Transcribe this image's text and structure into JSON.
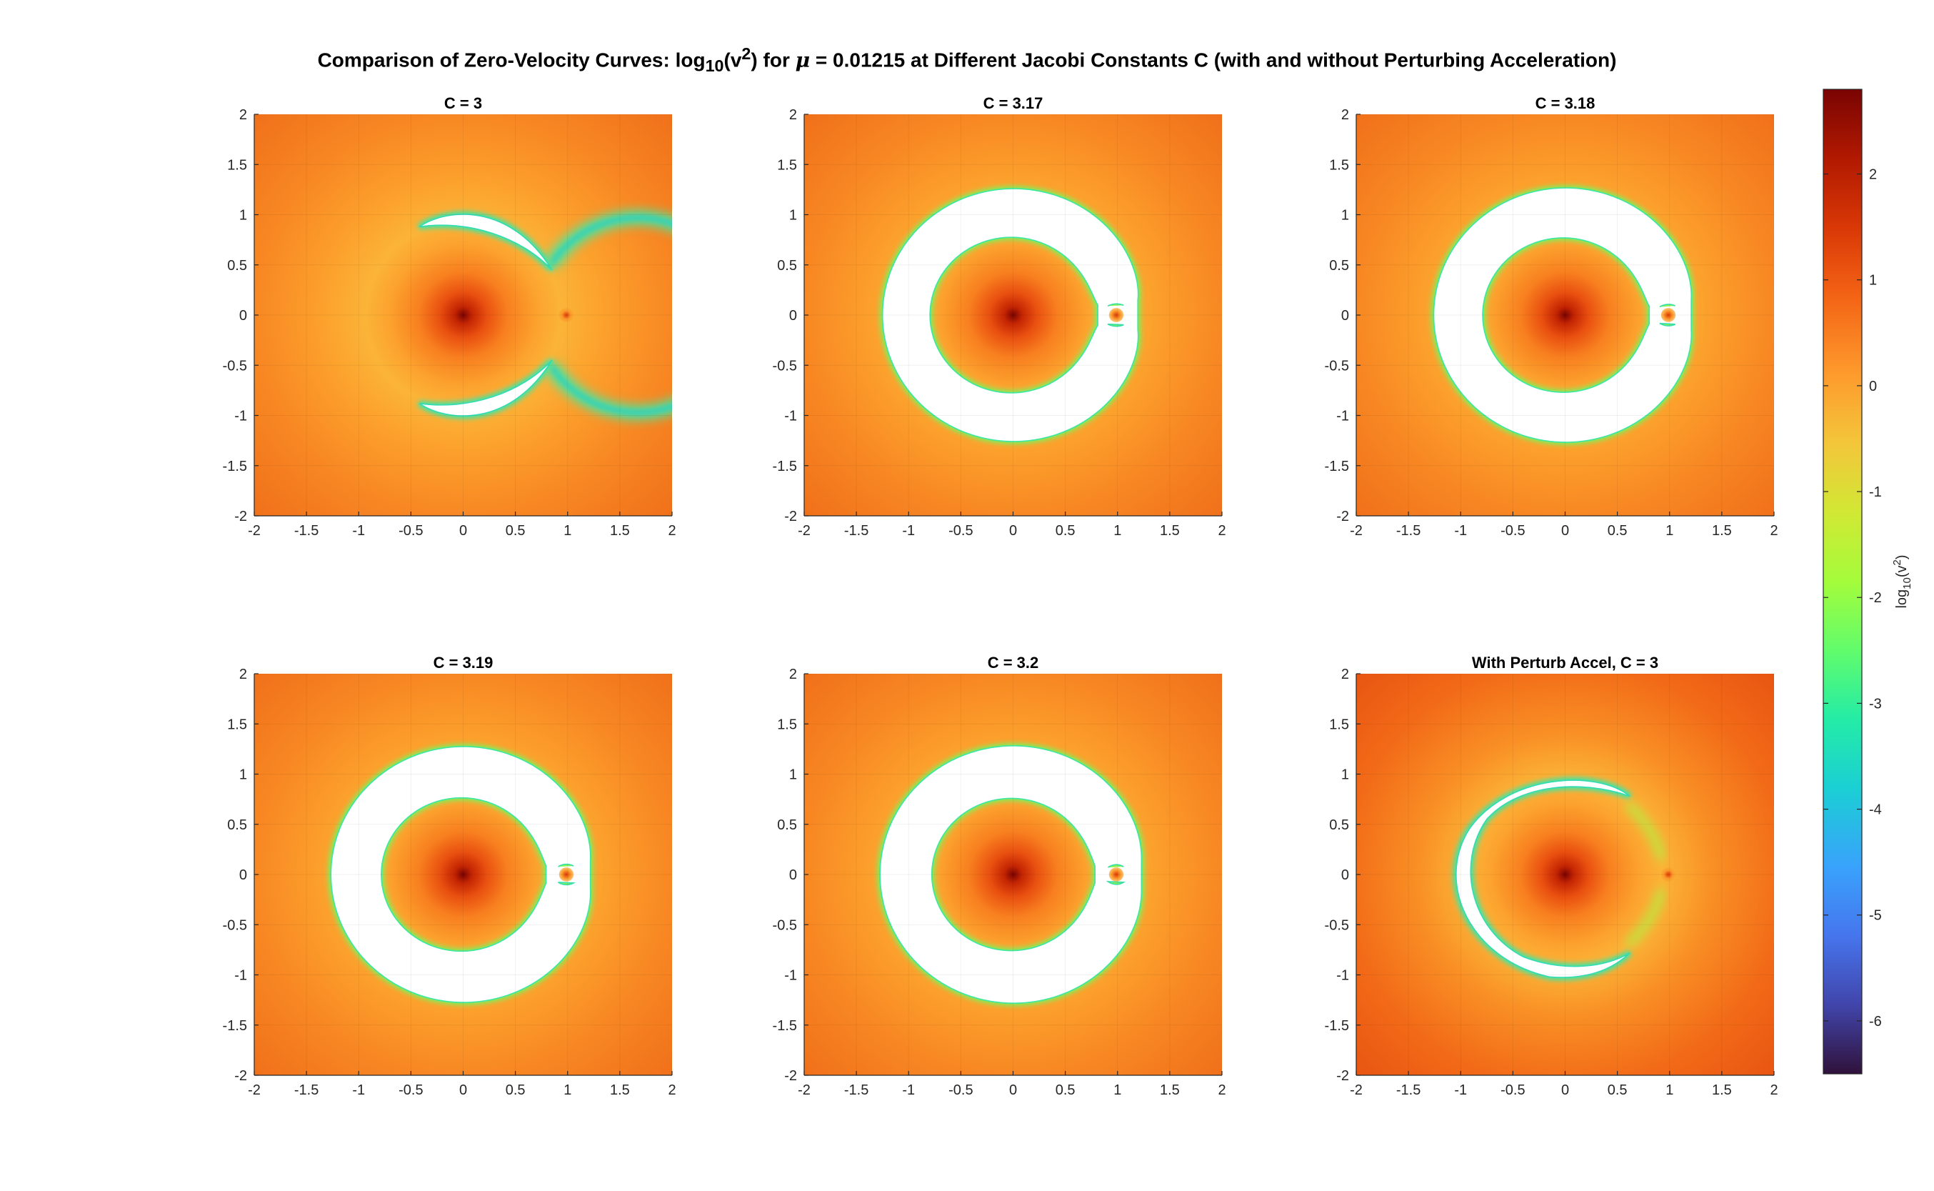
{
  "figure": {
    "title_parts": {
      "pre": "Comparison of Zero-Velocity Curves: log",
      "sub": "10",
      "mid": "(v",
      "sup": "2",
      "post1": ") for ",
      "mu": "μ",
      "post2": " = 0.01215 at Different Jacobi Constants C (with and without Perturbing Acceleration)"
    }
  },
  "chart_data": [
    {
      "type": "heatmap",
      "title": "C = 3",
      "C": 3,
      "perturbed": false,
      "xlim": [
        -2,
        2
      ],
      "ylim": [
        -2,
        2
      ],
      "xticks": [
        -2,
        -1.5,
        -1,
        -0.5,
        0,
        0.5,
        1,
        1.5,
        2
      ],
      "yticks": [
        -2,
        -1.5,
        -1,
        -0.5,
        0,
        0.5,
        1,
        1.5,
        2
      ],
      "grid": true
    },
    {
      "type": "heatmap",
      "title": "C = 3.17",
      "C": 3.17,
      "perturbed": false,
      "xlim": [
        -2,
        2
      ],
      "ylim": [
        -2,
        2
      ],
      "xticks": [
        -2,
        -1.5,
        -1,
        -0.5,
        0,
        0.5,
        1,
        1.5,
        2
      ],
      "yticks": [
        -2,
        -1.5,
        -1,
        -0.5,
        0,
        0.5,
        1,
        1.5,
        2
      ],
      "grid": true
    },
    {
      "type": "heatmap",
      "title": "C = 3.18",
      "C": 3.18,
      "perturbed": false,
      "xlim": [
        -2,
        2
      ],
      "ylim": [
        -2,
        2
      ],
      "xticks": [
        -2,
        -1.5,
        -1,
        -0.5,
        0,
        0.5,
        1,
        1.5,
        2
      ],
      "yticks": [
        -2,
        -1.5,
        -1,
        -0.5,
        0,
        0.5,
        1,
        1.5,
        2
      ],
      "grid": true
    },
    {
      "type": "heatmap",
      "title": "C = 3.19",
      "C": 3.19,
      "perturbed": false,
      "xlim": [
        -2,
        2
      ],
      "ylim": [
        -2,
        2
      ],
      "xticks": [
        -2,
        -1.5,
        -1,
        -0.5,
        0,
        0.5,
        1,
        1.5,
        2
      ],
      "yticks": [
        -2,
        -1.5,
        -1,
        -0.5,
        0,
        0.5,
        1,
        1.5,
        2
      ],
      "grid": true
    },
    {
      "type": "heatmap",
      "title": "C = 3.2",
      "C": 3.2,
      "perturbed": false,
      "xlim": [
        -2,
        2
      ],
      "ylim": [
        -2,
        2
      ],
      "xticks": [
        -2,
        -1.5,
        -1,
        -0.5,
        0,
        0.5,
        1,
        1.5,
        2
      ],
      "yticks": [
        -2,
        -1.5,
        -1,
        -0.5,
        0,
        0.5,
        1,
        1.5,
        2
      ],
      "grid": true
    },
    {
      "type": "heatmap",
      "title": "With Perturb Accel, C = 3",
      "C": 3,
      "perturbed": true,
      "xlim": [
        -2,
        2
      ],
      "ylim": [
        -2,
        2
      ],
      "xticks": [
        -2,
        -1.5,
        -1,
        -0.5,
        0,
        0.5,
        1,
        1.5,
        2
      ],
      "yticks": [
        -2,
        -1.5,
        -1,
        -0.5,
        0,
        0.5,
        1,
        1.5,
        2
      ],
      "grid": true
    }
  ],
  "colorbar": {
    "label_pre": "log",
    "label_sub": "10",
    "label_post": "(v",
    "label_sup": "2",
    "label_end": ")",
    "range": [
      -6.5,
      2.8
    ],
    "ticks": [
      2,
      1,
      0,
      -1,
      -2,
      -3,
      -4,
      -5,
      -6
    ],
    "colormap": "turbo"
  },
  "colors": {
    "forbidden_region": "#ffffff",
    "grid": "#dcdcdc",
    "axis": "#262626"
  }
}
